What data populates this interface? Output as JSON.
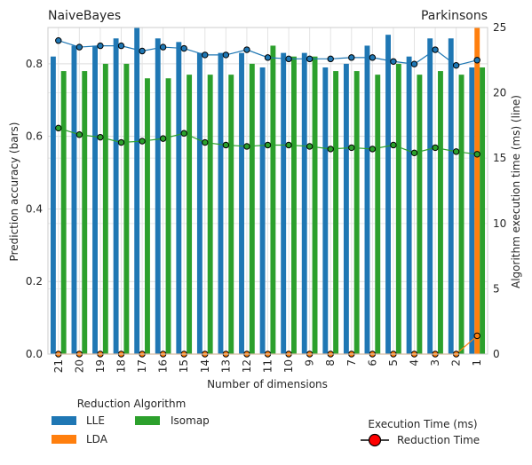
{
  "chart_data": {
    "type": "bar",
    "title_left": "NaiveBayes",
    "title_right": "Parkinsons",
    "xlabel": "Number of dimensions",
    "ylabel": "Prediction accuracy (bars)",
    "ylabel_right": "Algorithm execution time (ms) (line)",
    "categories": [
      "21",
      "20",
      "19",
      "18",
      "17",
      "16",
      "15",
      "14",
      "13",
      "12",
      "11",
      "10",
      "9",
      "8",
      "7",
      "6",
      "5",
      "4",
      "3",
      "2",
      "1"
    ],
    "ylim": [
      0,
      0.9
    ],
    "yticks": [
      "0.0",
      "0.2",
      "0.4",
      "0.6",
      "0.8"
    ],
    "y2lim": [
      0,
      25
    ],
    "y2ticks": [
      "0",
      "5",
      "10",
      "15",
      "20",
      "25"
    ],
    "grid": true,
    "series": [
      {
        "name": "LLE",
        "color": "#1f77b4",
        "values": [
          0.82,
          0.85,
          0.85,
          0.87,
          0.9,
          0.87,
          0.86,
          0.83,
          0.83,
          0.83,
          0.79,
          0.83,
          0.83,
          0.79,
          0.8,
          0.85,
          0.88,
          0.82,
          0.87,
          0.87,
          0.79
        ]
      },
      {
        "name": "LDA",
        "color": "#ff7f0e",
        "values": [
          0,
          0,
          0,
          0,
          0,
          0,
          0,
          0,
          0,
          0,
          0,
          0,
          0,
          0,
          0,
          0,
          0,
          0,
          0,
          0,
          0.9
        ]
      },
      {
        "name": "Isomap",
        "color": "#2ca02c",
        "values": [
          0.78,
          0.78,
          0.8,
          0.8,
          0.76,
          0.76,
          0.77,
          0.77,
          0.77,
          0.8,
          0.85,
          0.82,
          0.82,
          0.78,
          0.78,
          0.77,
          0.8,
          0.77,
          0.78,
          0.77,
          0.79
        ]
      }
    ],
    "lines": [
      {
        "name": "LLE",
        "color": "#1f77b4",
        "values": [
          24.0,
          23.5,
          23.6,
          23.6,
          23.2,
          23.5,
          23.4,
          22.9,
          22.9,
          23.3,
          22.7,
          22.6,
          22.6,
          22.6,
          22.7,
          22.7,
          22.4,
          22.2,
          23.3,
          22.1,
          22.5
        ]
      },
      {
        "name": "LDA",
        "color": "#ff7f0e",
        "values": [
          0,
          0,
          0,
          0,
          0,
          0,
          0,
          0,
          0,
          0,
          0,
          0,
          0,
          0,
          0,
          0,
          0,
          0,
          0,
          0,
          1.4
        ]
      },
      {
        "name": "Isomap",
        "color": "#2ca02c",
        "values": [
          17.3,
          16.8,
          16.6,
          16.2,
          16.3,
          16.5,
          16.9,
          16.2,
          16.0,
          15.9,
          16.0,
          16.0,
          15.9,
          15.7,
          15.8,
          15.7,
          16.0,
          15.4,
          15.8,
          15.5,
          15.3
        ]
      }
    ],
    "legend_title": "Reduction Algorithm",
    "legend2_title": "Execution Time (ms)",
    "legend2_label": "Reduction Time",
    "marker_color": "#ff0000"
  }
}
